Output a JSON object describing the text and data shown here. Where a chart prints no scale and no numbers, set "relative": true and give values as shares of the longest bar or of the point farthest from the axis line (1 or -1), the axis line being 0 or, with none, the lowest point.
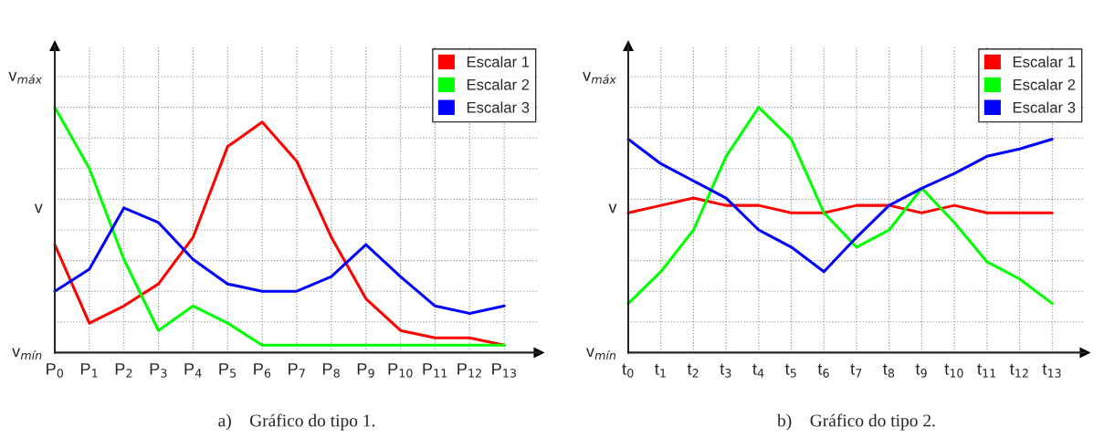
{
  "chart_data": [
    {
      "type": "line",
      "relative": true,
      "categories": [
        "P$_{0}$",
        "P$_{1}$",
        "P$_{2}$",
        "P$_{3}$",
        "P$_{4}$",
        "P$_{5}$",
        "P$_{6}$",
        "P$_{7}$",
        "P$_{8}$",
        "P$_{9}$",
        "P$_{10}$",
        "P$_{11}$",
        "P$_{12}$",
        "P$_{13}$"
      ],
      "series": [
        {
          "name": "Escalar 1",
          "color": "#ff0000",
          "values": [
            0.44,
            0.12,
            0.19,
            0.28,
            0.47,
            0.84,
            0.94,
            0.78,
            0.47,
            0.22,
            0.09,
            0.06,
            0.06,
            0.03
          ]
        },
        {
          "name": "Escalar 2",
          "color": "#00ff00",
          "values": [
            1,
            0.75,
            0.38,
            0.09,
            0.19,
            0.12,
            0.03,
            0.03,
            0.03,
            0.03,
            0.03,
            0.03,
            0.03,
            0.03
          ]
        },
        {
          "name": "Escalar 3",
          "color": "#0000ff",
          "values": [
            0.25,
            0.34,
            0.59,
            0.53,
            0.38,
            0.28,
            0.25,
            0.25,
            0.31,
            0.44,
            0.31,
            0.19,
            0.16,
            0.19
          ]
        }
      ],
      "grid": true,
      "legend": "top right",
      "line_style": "solid",
      "annotations": [
        "v$_{máx}$",
        "v",
        "v$_{mín}$",
        "a)    Gráfico do tipo 1."
      ]
    },
    {
      "type": "line",
      "relative": true,
      "categories": [
        "t$_{0}$",
        "t$_{1}$",
        "t$_{2}$",
        "t$_{3}$",
        "t$_{4}$",
        "t$_{5}$",
        "t$_{6}$",
        "t$_{7}$",
        "t$_{8}$",
        "t$_{9}$",
        "t$_{10}$",
        "t$_{11}$",
        "t$_{12}$",
        "t$_{13}$"
      ],
      "series": [
        {
          "name": "Escalar 1",
          "color": "#ff0000",
          "values": [
            0.57,
            0.6,
            0.63,
            0.6,
            0.6,
            0.57,
            0.57,
            0.6,
            0.6,
            0.57,
            0.6,
            0.57,
            0.57,
            0.57
          ]
        },
        {
          "name": "Escalar 2",
          "color": "#00ff00",
          "values": [
            0.2,
            0.33,
            0.5,
            0.8,
            1,
            0.87,
            0.57,
            0.43,
            0.5,
            0.67,
            0.53,
            0.37,
            0.3,
            0.2
          ]
        },
        {
          "name": "Escalar 3",
          "color": "#0000ff",
          "values": [
            0.87,
            0.77,
            0.7,
            0.63,
            0.5,
            0.43,
            0.33,
            0.47,
            0.6,
            0.67,
            0.73,
            0.8,
            0.83,
            0.87
          ]
        }
      ],
      "grid": true,
      "legend": "top right",
      "line_style": "solid",
      "annotations": [
        "v$_{máx}$",
        "v",
        "v$_{mín}$",
        "b)    Gráfico do tipo 2."
      ]
    }
  ]
}
